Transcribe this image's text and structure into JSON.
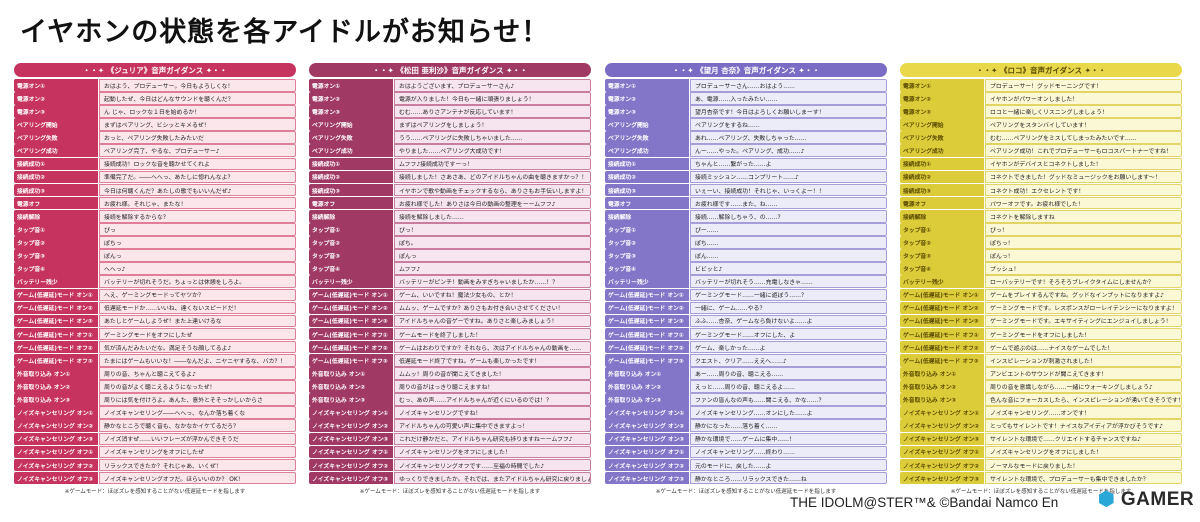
{
  "title": "イヤホンの状態を各アイドルがお知らせ！",
  "footnote": "※ゲームモード：ほぼズレを感知することがない低遅延モードを指します",
  "copyright": "THE IDOLM@STER™& ©Bandai Namco En",
  "logo_text": "GAMER",
  "labels": [
    "電源オン①",
    "電源オン②",
    "電源オン③",
    "ペアリング開始",
    "ペアリング失敗",
    "ペアリング成功",
    "接続成功①",
    "接続成功②",
    "接続成功③",
    "電源オフ",
    "接続解除",
    "タップ音①",
    "タップ音②",
    "タップ音③",
    "タップ音④",
    "バッテリー残少",
    "ゲーム(低遅延)モード オン①",
    "ゲーム(低遅延)モード オン②",
    "ゲーム(低遅延)モード オン③",
    "ゲーム(低遅延)モード オフ①",
    "ゲーム(低遅延)モード オフ②",
    "ゲーム(低遅延)モード オフ③",
    "外音取り込み オン①",
    "外音取り込み オン②",
    "外音取り込み オン③",
    "ノイズキャンセリング オン①",
    "ノイズキャンセリング オン②",
    "ノイズキャンセリング オン③",
    "ノイズキャンセリング オフ①",
    "ノイズキャンセリング オフ②",
    "ノイズキャンセリング オフ③"
  ],
  "panels": [
    {
      "header": "・・✦ 《ジュリア》音声ガイダンス ✦・・",
      "colors": {
        "head": "#c6335e",
        "label": "#c6335e",
        "text_bg": "#fbe6ec",
        "border": "#e07d99"
      },
      "lines": [
        "おはよう、プロデューサー。今日もよろしくな！",
        "起動したぜ、今日はどんなサウンドを聴くんだ？",
        "ん じゃ、ロックな１日を始めるか！",
        "まずはペアリング、ビシッとキメるぜ！",
        "おっと、ペアリング失敗したみたいだ",
        "ペアリング完了、やるな、プロデューサー♪",
        "接続成功！ロックな音を聴かせてくれよ",
        "準備完了だ。――へへっ、あたしに惚れんなよ？",
        "今日は何聴くんだ？あたしの歌でもいいんだぜ♪",
        "お疲れ様。それじゃ、またな！",
        "接続を解除するからな？",
        "ぴっ",
        "ぽちっ",
        "ぽんっ",
        "へへっ♪",
        "バッテリーが切れそうだ。ちょっとは休憩をしろよ。",
        "へえ、ゲーミングモードってヤツか？",
        "低遅延モードか……いいね、達くないスピードだ！",
        "あたしとゲームしようぜ！また上達いけるな",
        "ゲーミングモードをオフにしたぜ",
        "気が済んだみたいだな。満足そうな顔してるよ♪",
        "たまにはゲームもいいな！――なんだよ、ニヤニヤするな、バカ？！",
        "周りの音、ちゃんと聴こえてるよ♪",
        "周りの音がよく聴こえるようになったぜ！",
        "周りには気を付けろよ。あんた、意外とそそっかしいからさ",
        "ノイズキャンセリング――へへっ、なんか落ち着くな",
        "静かなところで聴く音も、なかなかイケてるだろ？",
        "ノイズ消すぜ……いいフレーズが浮かんできそうだ",
        "ノイズキャンセリングをオフにしたぜ",
        "リラックスできたか？それじゃあ、いくぜ！",
        "ノイズキャンセリングオフだ。ほらいいのか？ OK！"
      ]
    },
    {
      "header": "・・✦ 《松田 亜利沙》音声ガイダンス ✦・・",
      "colors": {
        "head": "#a03a64",
        "label": "#a03a64",
        "text_bg": "#f6e5ee",
        "border": "#c97ea0"
      },
      "lines": [
        "おはようございます、プロデューサーさん♪",
        "電源が入りました！今日も一緒に頑張りましょう！",
        "むむ……ありさアンテナが反応しています！",
        "まずはペアリングをしましょう！",
        "うう……ペアリングに失敗しちゃいました……",
        "やりました……ペアリング大成功です！",
        "ムフフ♪接続成功ですーっ！",
        "接続しました！さあさあ、どのアイドルちゃんの曲を聴きますかっ？！",
        "イヤホンで歌や動画をチェックするなら、ありさもお手伝いしますよ！",
        "お疲れ様でした！ありさは今日の動画の整理をーームフフ♪",
        "接続を解除しました……",
        "ぴっ！",
        "ぽち。",
        "ぽんっ",
        "ムフフ♪",
        "バッテリーがピンチ！動画をみすぎちゃいましたか……！？",
        "ゲーム、いいですね！魔法少女もの、とか！",
        "ムムッ、ゲームですか？ありさもお付き合いさせてください！",
        "アイドルちゃんの音ゲーですね。ありさと楽しみましょう！",
        "ゲームモードを終了しました！",
        "ゲームはおわりですか？それなら、次はアイドルちゃんの動画を……",
        "低遅延モード終了ですね。ゲームも楽しかったです！",
        "ムムッ！周りの音が聞こえてきました！",
        "周りの音がはっきり聴こえますね！",
        "むっ、あの声……アイドルちゃんが近くにいるのでは！？",
        "ノイズキャンセリングですね！",
        "アイドルちゃんの可愛い声に集中できますよっ！",
        "これだけ静かだと、アイドルちゃん研究も捗りますねーームフフ♪",
        "ノイズキャンセリングをオフにしました！",
        "ノイズキャンセリングオフです……至福の時間でした♪",
        "ゆっくりできましたか。それでは、またアイドルちゃん研究に戻りましょう！"
      ]
    },
    {
      "header": "・・✦ 《望月 杏奈》音声ガイダンス ✦・・",
      "colors": {
        "head": "#7a6cc4",
        "label": "#8376c8",
        "text_bg": "#ecebf8",
        "border": "#a79ed9"
      },
      "lines": [
        "プロデューサーさん……おはよう……",
        "あ、電源……入ったみたい……",
        "望月杏奈です！今日はよろしくお願いしまーす！",
        "ペアリングをするね……",
        "あれ……ペアリング、失敗しちゃった……",
        "んー……やった。ペアリング、成功……♪",
        "ちゃんと……繋がった……よ",
        "接続ミッション……コンプリート……♪",
        "いぇーい、接続成功！それじゃ、いっくよー！！",
        "お疲れ様です……また、ね……",
        "接続……解除しちゃう、の……？",
        "ぴー……",
        "ぽち……",
        "ぽん……",
        "ビビッと♪",
        "バッテリーが切れそう……充電しなきゃ……",
        "ゲーミングモード……一緒に遊ぼう……？",
        "一緒に、ゲーム……やる？",
        "ふふ……杏奈、ゲームなら負けないよ……よ",
        "ゲーミングモード……オフにした、よ",
        "ゲーム、楽しかった……よ",
        "クエスト、クリア……ええへ……♪",
        "あー……周りの音、聴こえる……",
        "えっと……周りの音、聴こえるよ……",
        "ファンの皆んなの声も……聞こえる、かな……？",
        "ノイズキャンセリング……オンにした……よ",
        "静かになった……落ち着く……",
        "静かな環境で……ゲームに集中……！",
        "ノイズキャンセリング……終わり……",
        "元のモードに、戻した……よ",
        "静かなところ……リラックスできた……ね"
      ]
    },
    {
      "header": "・・✦ 《ロコ》音声ガイダンス ✦・・",
      "colors": {
        "head": "#e8d84a",
        "label": "#ddcc3a",
        "text_bg": "#fbf8d6",
        "border": "#e3d466",
        "head_text": "#5a4a00"
      },
      "lines": [
        "プロデューサー！グッドモーニングです！",
        "イヤホンがパワーオンしました！",
        "ロコと一緒に楽しくリスニングしましょう！",
        "ペアリングをスタンバイしています！",
        "むむ……ペアリングをミスしてしまったみたいです……",
        "ペアリング成功！これでプロデューサーもロコスパートナーですね！",
        "イヤホンがデバイスとコネクトしました！",
        "コネクトできました！グッドなミュージックをお願いします～！",
        "コネクト成功！エクセレントです！",
        "パワーオフです。お疲れ様でした！",
        "コネクトを解除しますね",
        "ぴっ！",
        "ぽちっ！",
        "ぽんっ！",
        "プッシュ！",
        "ローバッテリーです！そろそろブレイクタイムにしませんか？",
        "ゲームをプレイするんですね。グッドなインプットになりますよ♪",
        "ゲーミングモードです。レスポンスがローレイテンシーになりますよ！",
        "ゲーミングモードです。エキサイティングにエンジョイしましょう！",
        "ゲーミングモードをオフにしました！",
        "ゲームで遊ぶのは……ナイスなゲームでした！",
        "インスピレーションが刺激されました！",
        "アンビエントのサウンドが聞こえてきます！",
        "周りの音を意識しながら……一緒にウォーキングしましょう♪",
        "色んな音にフォーカスしたら、インスピレーションが湧いてきそうです！",
        "ノイズキャンセリング……オンです！",
        "とってもサイレントです！ナイスなアイディアが浮かびそうです♪",
        "サイレントな環境で……クリエイトするチャンスですね♪",
        "ノイズキャンセリングをオフにしました！",
        "ノーマルなモードに戻りました！",
        "サイレントな環境で、プロデューサーも集中できましたか？"
      ]
    }
  ]
}
